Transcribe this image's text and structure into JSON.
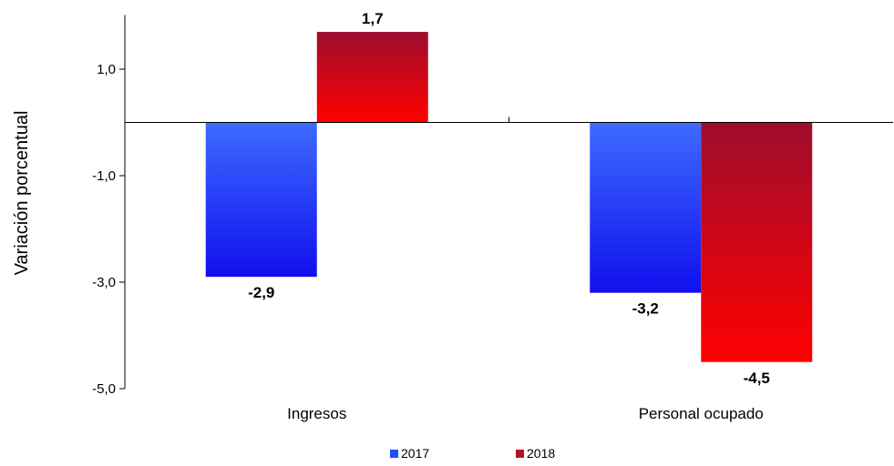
{
  "chart_data": {
    "type": "bar",
    "ylabel": "Variación porcentual",
    "categories": [
      "Ingresos",
      "Personal ocupado"
    ],
    "series": [
      {
        "name": "2017",
        "values": [
          -2.9,
          -3.2
        ],
        "labels": [
          "-2,9",
          "-3,2"
        ],
        "color_top": "#3d6bff",
        "color_bottom": "#1010ee"
      },
      {
        "name": "2018",
        "values": [
          1.7,
          -4.5
        ],
        "labels": [
          "1,7",
          "-4,5"
        ],
        "color_top": "#9e0d2d",
        "color_bottom": "#ff0000"
      }
    ],
    "ylim": [
      -5,
      2
    ],
    "yticks": [
      1,
      -1,
      -3,
      -5
    ],
    "ytick_labels": [
      "1,0",
      "-1,0",
      "-3,0",
      "-5,0"
    ],
    "legend_position": "bottom",
    "grid": false
  }
}
